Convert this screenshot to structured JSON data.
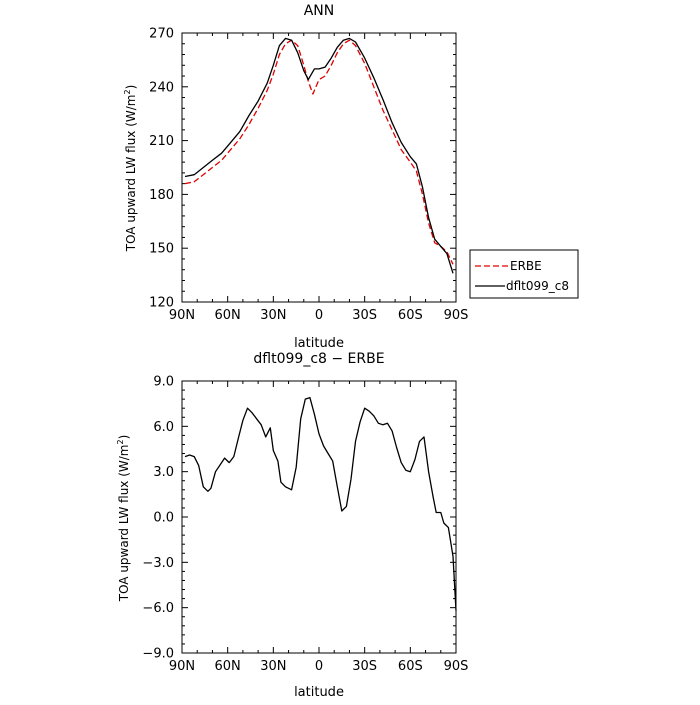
{
  "chart_data": [
    {
      "type": "line",
      "title": "ANN",
      "xlabel": "latitude",
      "ylabel": "TOA upward LW flux (W/m",
      "ylabel_sup": "2",
      "ylabel_close": ")",
      "xlim": [
        90,
        -90
      ],
      "ylim": [
        120,
        270
      ],
      "x_ticks": [
        90,
        60,
        30,
        0,
        -30,
        -60,
        -90
      ],
      "x_tick_labels": [
        "90N",
        "60N",
        "30N",
        "0",
        "30S",
        "60S",
        "90S"
      ],
      "y_ticks": [
        120,
        150,
        180,
        210,
        240,
        270
      ],
      "y_tick_labels": [
        "120",
        "150",
        "180",
        "210",
        "240",
        "270"
      ],
      "legend_position": "right-bottom outside",
      "series": [
        {
          "name": "ERBE",
          "color": "#e00000",
          "dash": "dashed",
          "points": [
            [
              88,
              186
            ],
            [
              82,
              187
            ],
            [
              76,
              191
            ],
            [
              70,
              195
            ],
            [
              64,
              199
            ],
            [
              58,
              205
            ],
            [
              52,
              211
            ],
            [
              46,
              219
            ],
            [
              40,
              228
            ],
            [
              34,
              238
            ],
            [
              30,
              247
            ],
            [
              26,
              258
            ],
            [
              22,
              264
            ],
            [
              18,
              266
            ],
            [
              14,
              263
            ],
            [
              10,
              252
            ],
            [
              7,
              243
            ],
            [
              4,
              236
            ],
            [
              0,
              244
            ],
            [
              -4,
              246
            ],
            [
              -8,
              252
            ],
            [
              -12,
              259
            ],
            [
              -16,
              264
            ],
            [
              -20,
              266
            ],
            [
              -24,
              263
            ],
            [
              -30,
              253
            ],
            [
              -36,
              240
            ],
            [
              -42,
              227
            ],
            [
              -48,
              216
            ],
            [
              -54,
              205
            ],
            [
              -60,
              198
            ],
            [
              -64,
              193
            ],
            [
              -68,
              180
            ],
            [
              -72,
              164
            ],
            [
              -76,
              153
            ],
            [
              -80,
              151
            ],
            [
              -84,
              148
            ],
            [
              -88,
              141
            ]
          ]
        },
        {
          "name": "dflt099_c8",
          "color": "#000000",
          "dash": "solid",
          "points": [
            [
              88,
              190
            ],
            [
              82,
              191
            ],
            [
              76,
              195
            ],
            [
              70,
              199
            ],
            [
              64,
              203
            ],
            [
              58,
              209
            ],
            [
              52,
              215
            ],
            [
              46,
              224
            ],
            [
              40,
              232
            ],
            [
              34,
              242
            ],
            [
              30,
              252
            ],
            [
              26,
              263
            ],
            [
              22,
              267
            ],
            [
              18,
              266
            ],
            [
              14,
              259
            ],
            [
              10,
              249
            ],
            [
              7,
              244
            ],
            [
              3,
              250
            ],
            [
              0,
              250
            ],
            [
              -4,
              251
            ],
            [
              -8,
              256
            ],
            [
              -12,
              262
            ],
            [
              -16,
              266
            ],
            [
              -20,
              267
            ],
            [
              -24,
              265
            ],
            [
              -30,
              256
            ],
            [
              -36,
              245
            ],
            [
              -42,
              233
            ],
            [
              -48,
              220
            ],
            [
              -54,
              209
            ],
            [
              -60,
              201
            ],
            [
              -64,
              197
            ],
            [
              -68,
              184
            ],
            [
              -72,
              167
            ],
            [
              -76,
              155
            ],
            [
              -80,
              151
            ],
            [
              -84,
              147
            ],
            [
              -88,
              136
            ]
          ]
        }
      ]
    },
    {
      "type": "line",
      "title": "dflt099_c8 − ERBE",
      "xlabel": "latitude",
      "ylabel": "TOA upward LW flux (W/m",
      "ylabel_sup": "2",
      "ylabel_close": ")",
      "xlim": [
        90,
        -90
      ],
      "ylim": [
        -9,
        9
      ],
      "x_ticks": [
        90,
        60,
        30,
        0,
        -30,
        -60,
        -90
      ],
      "x_tick_labels": [
        "90N",
        "60N",
        "30N",
        "0",
        "30S",
        "60S",
        "90S"
      ],
      "y_ticks": [
        -9,
        -6,
        -3,
        0,
        3,
        6,
        9
      ],
      "y_tick_labels": [
        "−9.0",
        "−6.0",
        "−3.0",
        "0.0",
        "3.0",
        "6.0",
        "9.0"
      ],
      "series": [
        {
          "color": "#000000",
          "dash": "solid",
          "points": [
            [
              88,
              4.0
            ],
            [
              85,
              4.1
            ],
            [
              82,
              4.0
            ],
            [
              79,
              3.4
            ],
            [
              76,
              2.0
            ],
            [
              73,
              1.7
            ],
            [
              71,
              1.9
            ],
            [
              68,
              3.0
            ],
            [
              64,
              3.6
            ],
            [
              62,
              3.9
            ],
            [
              59,
              3.6
            ],
            [
              56,
              4.0
            ],
            [
              53,
              5.2
            ],
            [
              50,
              6.4
            ],
            [
              47,
              7.2
            ],
            [
              44,
              6.9
            ],
            [
              41,
              6.5
            ],
            [
              38,
              6.1
            ],
            [
              35,
              5.3
            ],
            [
              32,
              5.9
            ],
            [
              30,
              4.4
            ],
            [
              27,
              3.7
            ],
            [
              25,
              2.3
            ],
            [
              22,
              2.0
            ],
            [
              18,
              1.8
            ],
            [
              15,
              3.3
            ],
            [
              12,
              6.5
            ],
            [
              9,
              7.8
            ],
            [
              6,
              7.9
            ],
            [
              3,
              6.8
            ],
            [
              0,
              5.5
            ],
            [
              -3,
              4.7
            ],
            [
              -6,
              4.2
            ],
            [
              -9,
              3.7
            ],
            [
              -12,
              2.0
            ],
            [
              -15,
              0.4
            ],
            [
              -18,
              0.7
            ],
            [
              -21,
              2.5
            ],
            [
              -24,
              5.0
            ],
            [
              -27,
              6.3
            ],
            [
              -30,
              7.2
            ],
            [
              -33,
              7.0
            ],
            [
              -36,
              6.7
            ],
            [
              -39,
              6.2
            ],
            [
              -42,
              6.1
            ],
            [
              -45,
              6.2
            ],
            [
              -48,
              5.7
            ],
            [
              -51,
              4.6
            ],
            [
              -54,
              3.6
            ],
            [
              -57,
              3.1
            ],
            [
              -60,
              3.0
            ],
            [
              -63,
              3.8
            ],
            [
              -66,
              5.0
            ],
            [
              -69,
              5.3
            ],
            [
              -72,
              3.0
            ],
            [
              -75,
              1.3
            ],
            [
              -77,
              0.3
            ],
            [
              -80,
              0.3
            ],
            [
              -82,
              -0.4
            ],
            [
              -85,
              -0.7
            ],
            [
              -88,
              -2.6
            ],
            [
              -90,
              -6.2
            ]
          ]
        }
      ]
    }
  ]
}
